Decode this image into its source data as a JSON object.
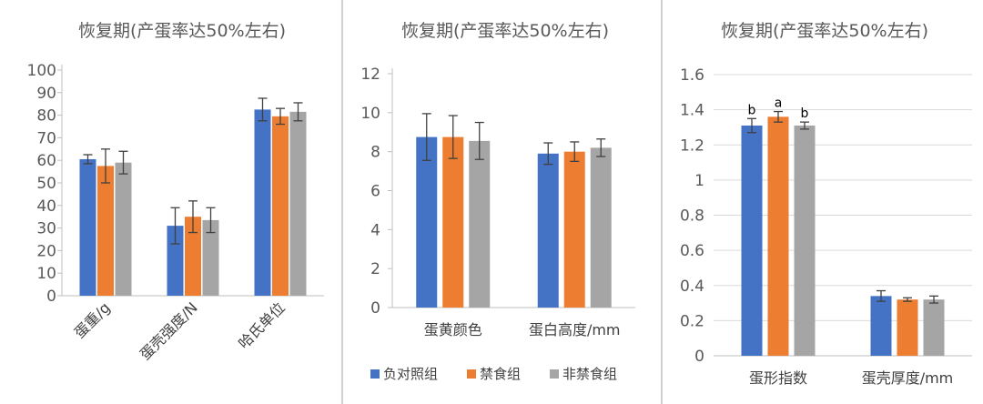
{
  "colors": {
    "负对照组": "#4472C4",
    "禁食组": "#ED7D31",
    "非禁食组": "#A5A5A5",
    "gridline": "#D9D9D9",
    "axis": "#BFBFBF",
    "errorbar": "#404040",
    "divider": "#D0D0D0"
  },
  "legend": [
    "负对照组",
    "禁食组",
    "非禁食组"
  ],
  "chart_data": [
    {
      "type": "bar",
      "title": "恢复期(产蛋率达50%左右)",
      "categories": [
        "蛋重/g",
        "蛋壳强度/N",
        "哈氏单位"
      ],
      "ylim": [
        0,
        100
      ],
      "yticks": [
        "0",
        "10",
        "20",
        "30",
        "40",
        "50",
        "60",
        "70",
        "80",
        "90",
        "100"
      ],
      "grid": false,
      "series": [
        {
          "name": "负对照组",
          "values": [
            60.5,
            31,
            82.5
          ],
          "errors": [
            2,
            8,
            5
          ]
        },
        {
          "name": "禁食组",
          "values": [
            57.5,
            35,
            79.5
          ],
          "errors": [
            7.5,
            7,
            3.5
          ]
        },
        {
          "name": "非禁食组",
          "values": [
            59,
            33.5,
            81.5
          ],
          "errors": [
            5,
            5.5,
            4
          ]
        }
      ]
    },
    {
      "type": "bar",
      "title": "恢复期(产蛋率达50%左右)",
      "categories": [
        "蛋黄颜色",
        "蛋白高度/mm"
      ],
      "ylim": [
        0,
        12
      ],
      "yticks": [
        "0",
        "2",
        "4",
        "6",
        "8",
        "10",
        "12"
      ],
      "grid": false,
      "series": [
        {
          "name": "负对照组",
          "values": [
            8.75,
            7.9
          ],
          "errors": [
            1.2,
            0.55
          ]
        },
        {
          "name": "禁食组",
          "values": [
            8.75,
            8.0
          ],
          "errors": [
            1.1,
            0.5
          ]
        },
        {
          "name": "非禁食组",
          "values": [
            8.55,
            8.2
          ],
          "errors": [
            0.95,
            0.45
          ]
        }
      ]
    },
    {
      "type": "bar",
      "title": "恢复期(产蛋率达50%左右)",
      "categories": [
        "蛋形指数",
        "蛋壳厚度/mm"
      ],
      "ylim": [
        0,
        1.6
      ],
      "yticks": [
        "0",
        "0.2",
        "0.4",
        "0.6",
        "0.8",
        "1",
        "1.2",
        "1.4",
        "1.6"
      ],
      "grid": true,
      "series": [
        {
          "name": "负对照组",
          "values": [
            1.31,
            0.34
          ],
          "errors": [
            0.04,
            0.03
          ],
          "labels": [
            "b",
            ""
          ]
        },
        {
          "name": "禁食组",
          "values": [
            1.36,
            0.32
          ],
          "errors": [
            0.03,
            0.01
          ],
          "labels": [
            "a",
            ""
          ]
        },
        {
          "name": "非禁食组",
          "values": [
            1.31,
            0.32
          ],
          "errors": [
            0.02,
            0.02
          ],
          "labels": [
            "b",
            ""
          ]
        }
      ]
    }
  ]
}
